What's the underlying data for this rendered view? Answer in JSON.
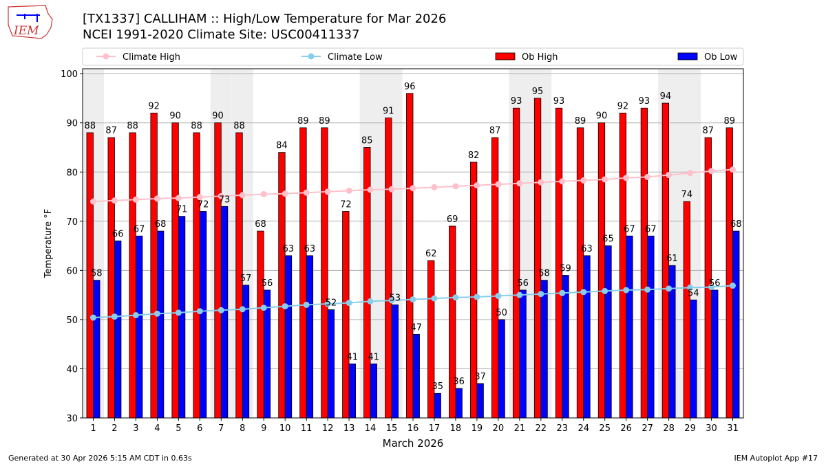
{
  "header": {
    "title_line1": "[TX1337] CALLIHAM :: High/Low Temperature for Mar 2026",
    "title_line2": "NCEI 1991-2020 Climate Site: USC00411337",
    "logo_text": "IEM"
  },
  "footer": {
    "left": "Generated at 30 Apr 2026 5:15 AM CDT in 0.63s",
    "right": "IEM Autoplot App #17"
  },
  "chart_data": {
    "type": "bar",
    "xlabel": "March 2026",
    "ylabel": "Temperature °F",
    "ylim": [
      30,
      101
    ],
    "yticks": [
      30,
      40,
      50,
      60,
      70,
      80,
      90,
      100
    ],
    "grid": true,
    "legend_placement": "top",
    "categories": [
      1,
      2,
      3,
      4,
      5,
      6,
      7,
      8,
      9,
      10,
      11,
      12,
      13,
      14,
      15,
      16,
      17,
      18,
      19,
      20,
      21,
      22,
      23,
      24,
      25,
      26,
      27,
      28,
      29,
      30,
      31
    ],
    "shaded_days": [
      1,
      7,
      8,
      14,
      15,
      21,
      22,
      28,
      29
    ],
    "series": [
      {
        "name": "Ob High",
        "type": "bar",
        "color": "#ff0000",
        "values": [
          88,
          87,
          88,
          92,
          90,
          88,
          90,
          88,
          68,
          84,
          89,
          89,
          72,
          85,
          91,
          96,
          62,
          69,
          82,
          87,
          93,
          95,
          93,
          89,
          90,
          92,
          93,
          94,
          74,
          87,
          89
        ]
      },
      {
        "name": "Ob Low",
        "type": "bar",
        "color": "#0000ff",
        "values": [
          58,
          66,
          67,
          68,
          71,
          72,
          73,
          57,
          56,
          63,
          63,
          52,
          41,
          41,
          53,
          47,
          35,
          36,
          37,
          50,
          56,
          58,
          59,
          63,
          65,
          67,
          67,
          61,
          54,
          56,
          68
        ]
      },
      {
        "name": "Climate High",
        "type": "line",
        "color": "#ffc0cb",
        "values": [
          74.0,
          74.2,
          74.4,
          74.6,
          74.7,
          74.9,
          75.1,
          75.3,
          75.5,
          75.6,
          75.8,
          76.0,
          76.2,
          76.4,
          76.5,
          76.7,
          76.9,
          77.1,
          77.3,
          77.5,
          77.7,
          77.9,
          78.1,
          78.3,
          78.5,
          78.8,
          79.0,
          79.4,
          79.8,
          80.2,
          80.5
        ]
      },
      {
        "name": "Climate Low",
        "type": "line",
        "color": "#87ceeb",
        "values": [
          50.4,
          50.6,
          50.9,
          51.2,
          51.4,
          51.7,
          51.9,
          52.1,
          52.4,
          52.7,
          53.0,
          53.2,
          53.4,
          53.7,
          53.9,
          54.1,
          54.3,
          54.5,
          54.6,
          54.8,
          55.0,
          55.2,
          55.4,
          55.6,
          55.8,
          56.0,
          56.1,
          56.3,
          56.5,
          56.6,
          56.9
        ]
      }
    ]
  }
}
